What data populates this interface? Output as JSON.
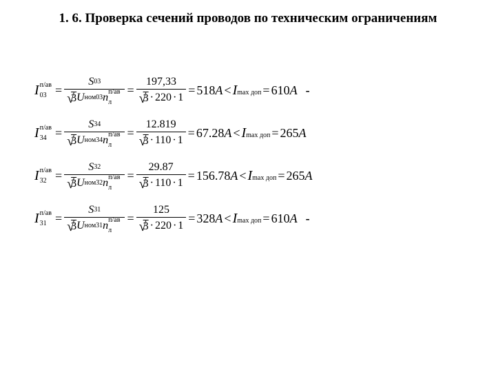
{
  "title": "1. 6. Проверка сечений проводов по техническим ограничениям",
  "superscript": "п/ав",
  "rows": [
    {
      "idx": "03",
      "S_label": "S",
      "S_sub": "03",
      "U_sub": "ном03",
      "n_sub": "л",
      "S_val": "197,33",
      "U_val": "220",
      "n_val": "1",
      "I_result": "518",
      "I_max": "610",
      "trailing_dash": "-"
    },
    {
      "idx": "34",
      "S_label": "S",
      "S_sub": "34",
      "U_sub": "ном34",
      "n_sub": "л",
      "S_val": "12.819",
      "U_val": "110",
      "n_val": "1",
      "I_result": "67.28",
      "I_max": "265",
      "trailing_dash": ""
    },
    {
      "idx": "32",
      "S_label": "S",
      "S_sub": "32",
      "U_sub": "ном32",
      "n_sub": "л",
      "S_val": "29.87",
      "U_val": "110",
      "n_val": "1",
      "I_result": "156.78",
      "I_max": "265",
      "trailing_dash": ""
    },
    {
      "idx": "31",
      "S_label": "S",
      "S_sub": "31",
      "U_sub": "ном31",
      "n_sub": "л",
      "S_val": "125",
      "U_val": "220",
      "n_val": "1",
      "I_result": "328",
      "I_max": "610",
      "trailing_dash": "-"
    }
  ],
  "labels": {
    "unit_A": "A",
    "lt": "<",
    "eq": "=",
    "I": "I",
    "U": "U",
    "n": "n",
    "sqrt3": "3",
    "Imax_sub": "max доп"
  }
}
